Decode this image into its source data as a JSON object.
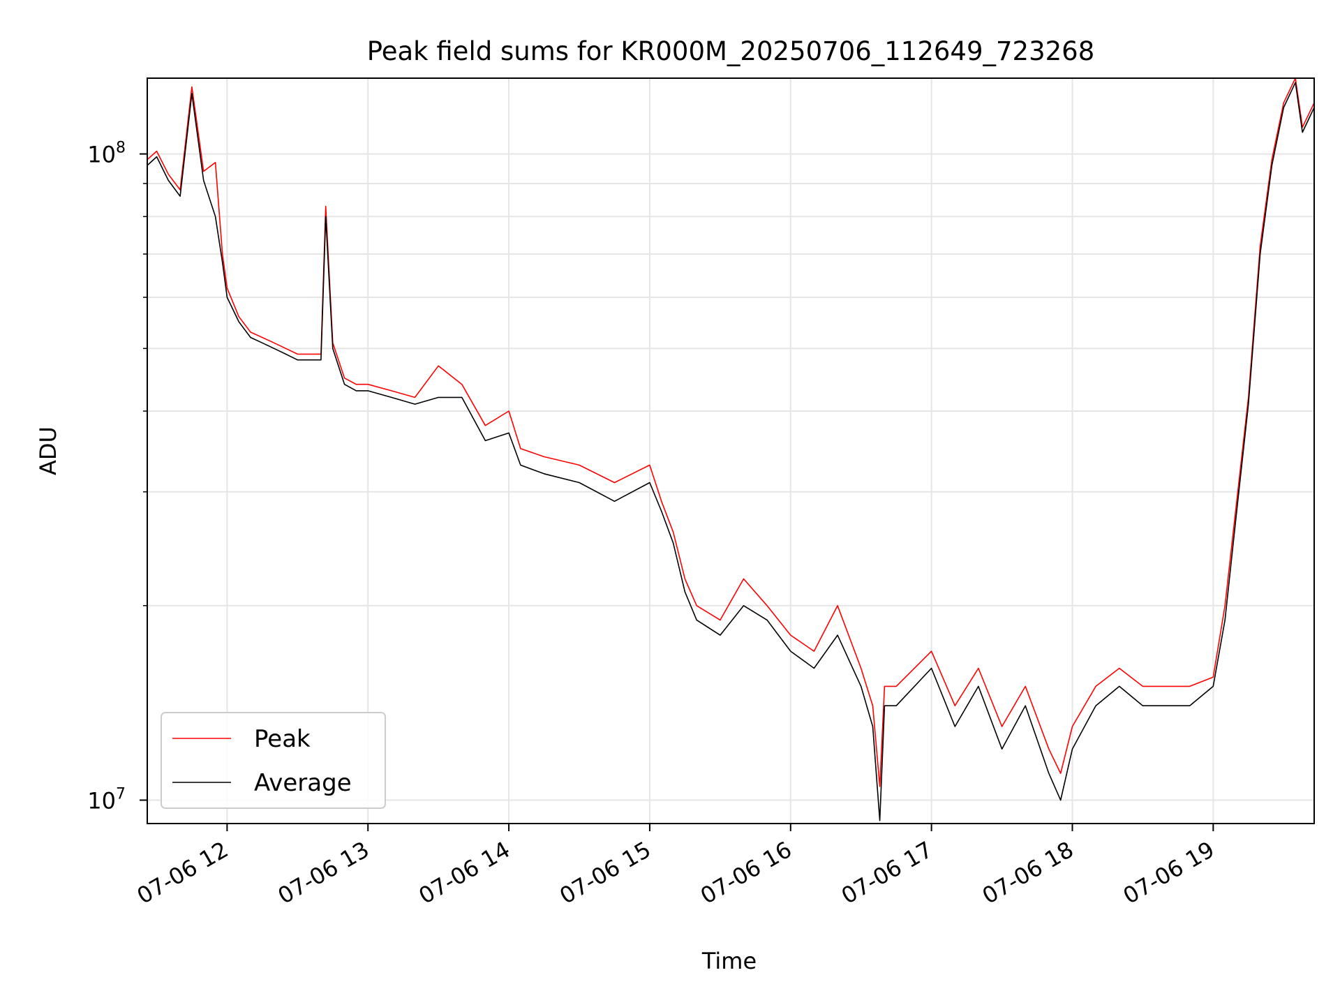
{
  "chart_data": {
    "type": "line",
    "title": "Peak field sums for KR000M_20250706_112649_723268",
    "xlabel": "Time",
    "ylabel": "ADU",
    "yscale": "log",
    "ylim": [
      9200000,
      131000000
    ],
    "xlim": [
      "07-06 11:26",
      "07-06 19:43"
    ],
    "grid": true,
    "legend_position": "lower-left",
    "x_ticks": [
      "07-06 12",
      "07-06 13",
      "07-06 14",
      "07-06 15",
      "07-06 16",
      "07-06 17",
      "07-06 18",
      "07-06 19"
    ],
    "y_ticks": [
      {
        "value": 10000000,
        "label_base": "10",
        "label_exp": "7"
      },
      {
        "value": 100000000,
        "label_base": "10",
        "label_exp": "8"
      }
    ],
    "colors": {
      "Peak": "#ff0000",
      "Average": "#000000"
    },
    "series": [
      {
        "name": "Average",
        "x": [
          "11:26",
          "11:30",
          "11:35",
          "11:40",
          "11:45",
          "11:50",
          "11:55",
          "11:58",
          "12:00",
          "12:05",
          "12:10",
          "12:15",
          "12:20",
          "12:25",
          "12:30",
          "12:35",
          "12:40",
          "12:42",
          "12:45",
          "12:50",
          "12:55",
          "13:00",
          "13:10",
          "13:20",
          "13:30",
          "13:40",
          "13:50",
          "14:00",
          "14:05",
          "14:15",
          "14:30",
          "14:45",
          "15:00",
          "15:05",
          "15:10",
          "15:15",
          "15:20",
          "15:30",
          "15:40",
          "15:50",
          "16:00",
          "16:10",
          "16:20",
          "16:30",
          "16:35",
          "16:38",
          "16:40",
          "16:45",
          "17:00",
          "17:10",
          "17:20",
          "17:30",
          "17:40",
          "17:50",
          "17:55",
          "18:00",
          "18:10",
          "18:20",
          "18:30",
          "18:40",
          "18:50",
          "19:00",
          "19:05",
          "19:10",
          "19:15",
          "19:20",
          "19:25",
          "19:30",
          "19:35",
          "19:38",
          "19:43"
        ],
        "values": [
          96000000,
          99000000,
          91000000,
          86000000,
          124000000,
          91000000,
          80000000,
          68000000,
          60000000,
          55000000,
          52000000,
          51000000,
          50000000,
          49000000,
          48000000,
          48000000,
          48000000,
          80000000,
          50000000,
          44000000,
          43000000,
          43000000,
          42000000,
          41000000,
          42000000,
          42000000,
          36000000,
          37000000,
          33000000,
          32000000,
          31000000,
          29000000,
          31000000,
          28000000,
          25000000,
          21000000,
          19000000,
          18000000,
          20000000,
          19000000,
          17000000,
          16000000,
          18000000,
          15000000,
          13000000,
          9300000,
          14000000,
          14000000,
          16000000,
          13000000,
          15000000,
          12000000,
          14000000,
          11000000,
          10000000,
          12000000,
          14000000,
          15000000,
          14000000,
          14000000,
          14000000,
          15000000,
          19000000,
          28000000,
          41000000,
          70000000,
          96000000,
          118000000,
          129000000,
          108000000,
          118000000
        ]
      },
      {
        "name": "Peak",
        "x": [
          "11:26",
          "11:30",
          "11:35",
          "11:40",
          "11:45",
          "11:50",
          "11:55",
          "11:58",
          "12:00",
          "12:05",
          "12:10",
          "12:15",
          "12:20",
          "12:25",
          "12:30",
          "12:35",
          "12:40",
          "12:42",
          "12:45",
          "12:50",
          "12:55",
          "13:00",
          "13:10",
          "13:20",
          "13:30",
          "13:40",
          "13:50",
          "14:00",
          "14:05",
          "14:15",
          "14:30",
          "14:45",
          "15:00",
          "15:05",
          "15:10",
          "15:15",
          "15:20",
          "15:30",
          "15:40",
          "15:50",
          "16:00",
          "16:10",
          "16:20",
          "16:30",
          "16:35",
          "16:38",
          "16:40",
          "16:45",
          "17:00",
          "17:10",
          "17:20",
          "17:30",
          "17:40",
          "17:50",
          "17:55",
          "18:00",
          "18:10",
          "18:20",
          "18:30",
          "18:40",
          "18:50",
          "19:00",
          "19:05",
          "19:10",
          "19:15",
          "19:20",
          "19:25",
          "19:30",
          "19:35",
          "19:38",
          "19:43"
        ],
        "values": [
          98000000,
          101000000,
          93000000,
          88000000,
          127000000,
          94000000,
          97000000,
          70000000,
          62000000,
          56000000,
          53000000,
          52000000,
          51000000,
          50000000,
          49000000,
          49000000,
          49000000,
          83000000,
          51000000,
          45000000,
          44000000,
          44000000,
          43000000,
          42000000,
          47000000,
          44000000,
          38000000,
          40000000,
          35000000,
          34000000,
          33000000,
          31000000,
          33000000,
          29000000,
          26000000,
          22000000,
          20000000,
          19000000,
          22000000,
          20000000,
          18000000,
          17000000,
          20000000,
          16000000,
          14000000,
          10500000,
          15000000,
          15000000,
          17000000,
          14000000,
          16000000,
          13000000,
          15000000,
          12000000,
          11000000,
          13000000,
          15000000,
          16000000,
          15000000,
          15000000,
          15000000,
          15500000,
          20000000,
          29000000,
          42000000,
          72000000,
          98000000,
          120000000,
          131000000,
          110000000,
          120000000
        ]
      }
    ]
  }
}
